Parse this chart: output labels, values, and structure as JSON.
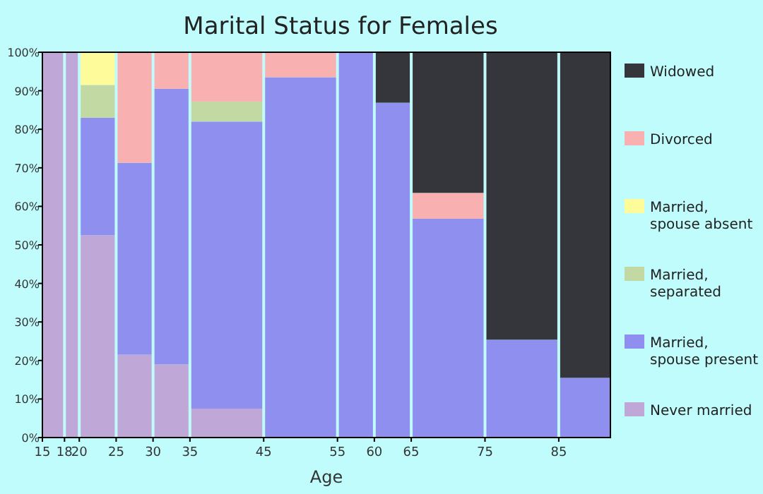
{
  "chart_data": {
    "type": "bar",
    "stacked": true,
    "title": "Marital Status for Females",
    "xlabel": "Age",
    "x": [
      16.5,
      19,
      22.5,
      27.5,
      32.5,
      40,
      50,
      57.5,
      62.5,
      70,
      80,
      88.5
    ],
    "xlim": [
      15,
      92
    ],
    "xticks": [
      15,
      18,
      20,
      25,
      30,
      35,
      45,
      55,
      60,
      65,
      75,
      85
    ],
    "ylim": [
      0,
      100
    ],
    "yticks": [
      {
        "value": 0,
        "label": "0%"
      },
      {
        "value": 10,
        "label": "10%"
      },
      {
        "value": 20,
        "label": "20%"
      },
      {
        "value": 30,
        "label": "30%"
      },
      {
        "value": 40,
        "label": "40%"
      },
      {
        "value": 50,
        "label": "50%"
      },
      {
        "value": 60,
        "label": "60%"
      },
      {
        "value": 70,
        "label": "70%"
      },
      {
        "value": 80,
        "label": "80%"
      },
      {
        "value": 90,
        "label": "90%"
      },
      {
        "value": 100,
        "label": "100%"
      }
    ],
    "legend": "right",
    "grid": false,
    "series": [
      {
        "name": "Never married",
        "color": "#bfa8d8",
        "values": [
          100,
          100,
          52.5,
          21.5,
          19,
          7.5,
          null,
          null,
          null,
          null,
          null,
          null
        ]
      },
      {
        "name": "Married, spouse present",
        "color": "#8f8ff0",
        "values": [
          null,
          null,
          30.5,
          49.8,
          71.5,
          74.5,
          93.5,
          100,
          86.9,
          56.8,
          25.4,
          15.5
        ]
      },
      {
        "name": "Married, separated",
        "color": "#c2d9a4",
        "values": [
          null,
          null,
          8.5,
          null,
          null,
          5.2,
          null,
          null,
          null,
          null,
          null,
          null
        ]
      },
      {
        "name": "Married, spouse absent",
        "color": "#fdfb9a",
        "values": [
          null,
          null,
          8.5,
          null,
          null,
          null,
          null,
          null,
          null,
          null,
          null,
          null
        ]
      },
      {
        "name": "Divorced",
        "color": "#f8b1b0",
        "values": [
          null,
          null,
          null,
          28.7,
          9.5,
          12.8,
          6.5,
          null,
          null,
          6.7,
          null,
          null
        ]
      },
      {
        "name": "Widowed",
        "color": "#35363c",
        "values": [
          null,
          null,
          null,
          null,
          null,
          null,
          null,
          null,
          13.1,
          36.5,
          74.6,
          84.5
        ]
      }
    ]
  }
}
